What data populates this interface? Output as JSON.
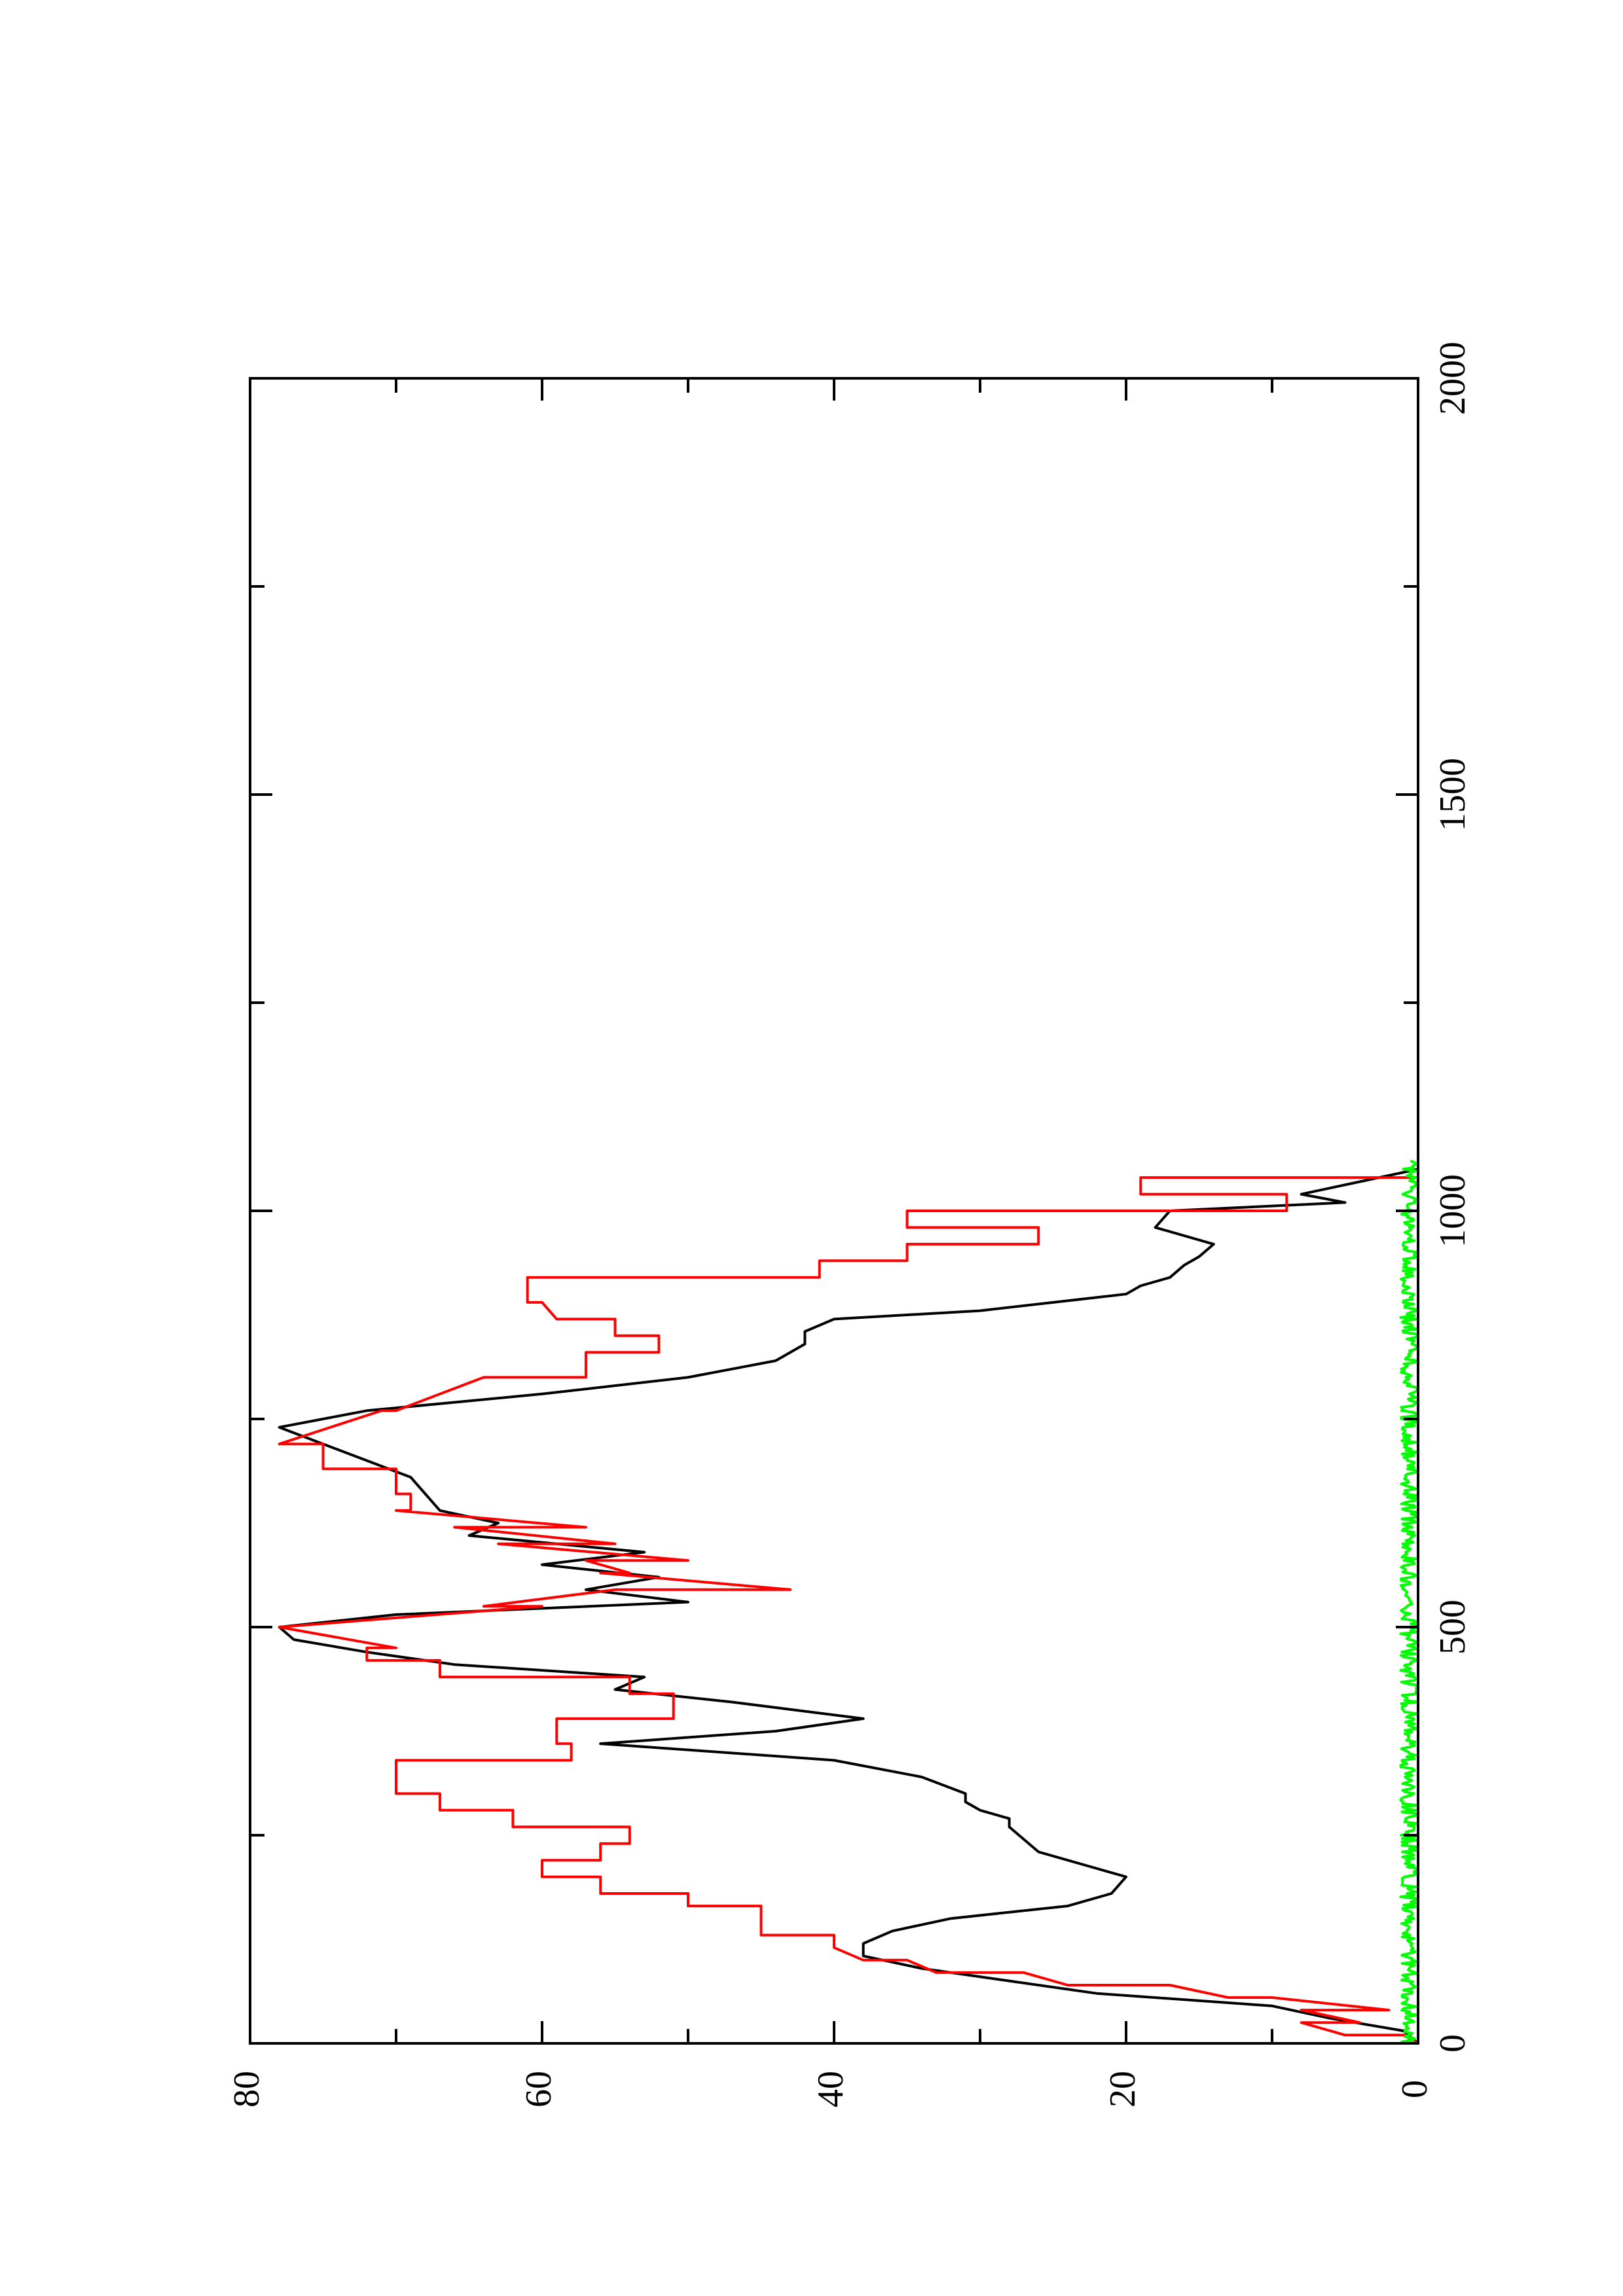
{
  "chart_data": {
    "type": "line",
    "orientation": "rotated-90-ccw",
    "title": "",
    "xlabel": "",
    "ylabel": "",
    "xlim": [
      0,
      2000
    ],
    "ylim": [
      0,
      80
    ],
    "x_ticks": [
      "0",
      "500",
      "1000",
      "1500",
      "2000"
    ],
    "x_minor_ticks": [
      250,
      750,
      1250,
      1750
    ],
    "y_ticks": [
      "0",
      "20",
      "40",
      "60",
      "80"
    ],
    "y_minor_ticks": [
      10,
      30,
      50,
      70
    ],
    "grid": false,
    "legend": "none",
    "series": [
      {
        "color": "#000000",
        "x": [
          0,
          15,
          30,
          45,
          60,
          75,
          90,
          105,
          120,
          135,
          150,
          165,
          180,
          200,
          215,
          230,
          245,
          260,
          270,
          280,
          290,
          300,
          320,
          340,
          360,
          375,
          390,
          410,
          425,
          440,
          455,
          470,
          485,
          500,
          515,
          530,
          545,
          560,
          575,
          590,
          610,
          625,
          640,
          660,
          680,
          700,
          720,
          740,
          760,
          780,
          800,
          820,
          840,
          855,
          870,
          880,
          890,
          900,
          910,
          920,
          935,
          945,
          960,
          980,
          1000,
          1010,
          1020,
          1035,
          1050
        ],
        "y": [
          0,
          1,
          6,
          10,
          22,
          28,
          34,
          38,
          38,
          36,
          32,
          24,
          21,
          20,
          23,
          26,
          27,
          28,
          28,
          30,
          31,
          31,
          34,
          40,
          56,
          44,
          38,
          47,
          55,
          53,
          66,
          72,
          77,
          78,
          70,
          50,
          57,
          52,
          60,
          53,
          65,
          63,
          67,
          68,
          69,
          72,
          75,
          78,
          72,
          60,
          50,
          44,
          42,
          42,
          40,
          30,
          25,
          20,
          19,
          17,
          16,
          15,
          14,
          18,
          17,
          5,
          8,
          4,
          0
        ]
      },
      {
        "color": "#ff0000",
        "x": [
          0,
          10,
          10,
          25,
          25,
          40,
          40,
          55,
          55,
          70,
          70,
          85,
          85,
          100,
          100,
          115,
          130,
          130,
          165,
          165,
          180,
          180,
          200,
          200,
          220,
          220,
          240,
          240,
          260,
          260,
          280,
          280,
          300,
          300,
          340,
          340,
          360,
          360,
          390,
          390,
          420,
          420,
          440,
          440,
          460,
          460,
          475,
          475,
          500,
          525,
          525,
          545,
          545,
          565,
          565,
          580,
          580,
          600,
          600,
          620,
          620,
          640,
          640,
          660,
          660,
          690,
          690,
          720,
          720,
          760,
          760,
          800,
          800,
          830,
          830,
          850,
          850,
          870,
          870,
          890,
          890,
          920,
          920,
          940,
          940,
          960,
          960,
          980,
          980,
          1000,
          1000,
          1020,
          1020,
          1040,
          1040,
          1055
        ],
        "y": [
          0,
          1,
          5,
          8,
          4,
          8,
          2,
          10,
          13,
          17,
          24,
          27,
          33,
          35,
          38,
          40,
          40,
          45,
          45,
          50,
          50,
          56,
          56,
          60,
          60,
          56,
          56,
          54,
          54,
          62,
          62,
          67,
          67,
          70,
          70,
          58,
          58,
          59,
          59,
          51,
          51,
          54,
          54,
          67,
          67,
          72,
          72,
          70,
          78,
          60,
          64,
          55,
          43,
          56,
          54,
          57,
          50,
          63,
          55,
          66,
          57,
          70,
          69,
          69,
          70,
          70,
          75,
          75,
          78,
          71,
          70,
          64,
          57,
          57,
          52,
          52,
          55,
          55,
          59,
          60,
          61,
          61,
          41,
          41,
          35,
          35,
          26,
          26,
          35,
          35,
          9,
          9,
          19,
          19,
          0,
          0
        ]
      },
      {
        "color": "#00ff00",
        "x": [
          0,
          1060
        ],
        "noise_max": 1.2,
        "y": [
          0.3,
          0.3
        ]
      }
    ]
  }
}
